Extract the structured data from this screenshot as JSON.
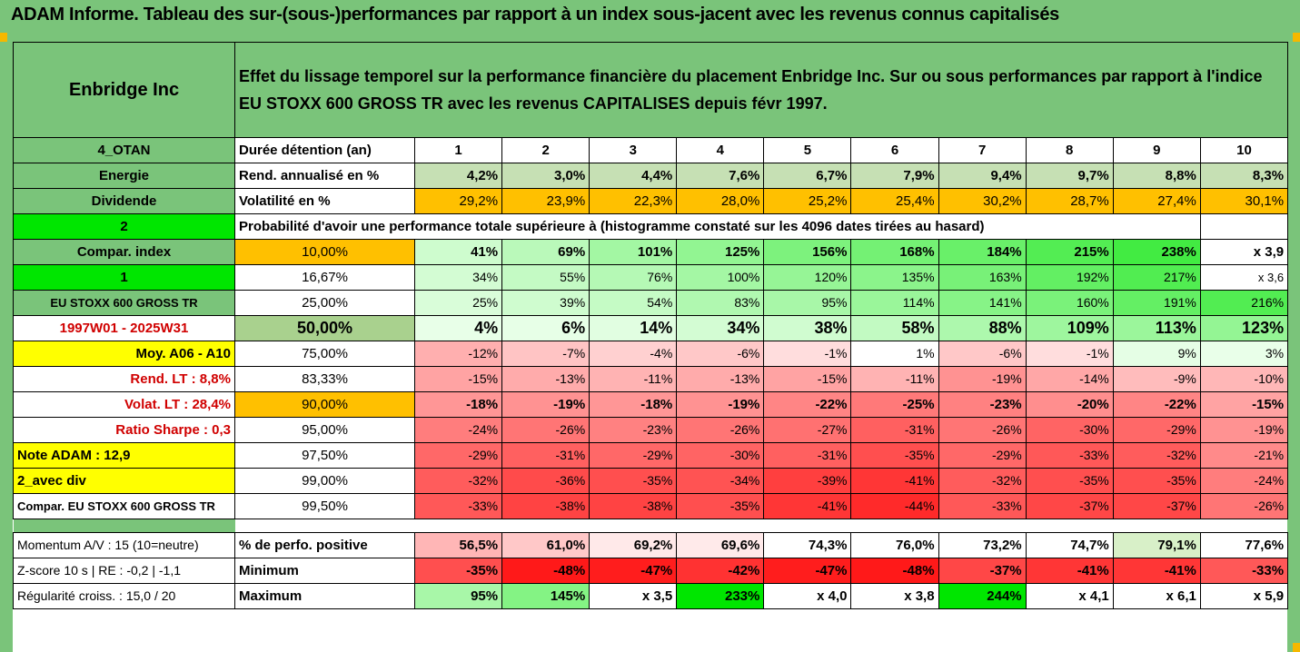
{
  "title": "ADAM Informe. Tableau des sur-(sous-)performances par rapport à un index sous-jacent avec les revenus connus capitalisés",
  "header": {
    "company": "Enbridge Inc",
    "description": "Effet du lissage temporel sur la performance financière du placement Enbridge Inc. Sur ou sous performances par rapport à l'indice EU STOXX 600 GROSS TR avec les revenus CAPITALISES depuis févr 1997."
  },
  "side": {
    "code": "4_OTAN",
    "sector": "Energie",
    "dividend": "Dividende",
    "val2": "2",
    "compar_index": "Compar. index",
    "val1": "1",
    "index_name": "EU STOXX 600 GROSS TR",
    "period": "1997W01 - 2025W31",
    "moy": "Moy. A06 - A10",
    "rend_lt": "Rend. LT :    8,8%",
    "volat_lt": "Volat. LT :   28,4%",
    "sharpe": "Ratio Sharpe :    0,3",
    "note": "Note ADAM : 12,9",
    "avec_div": "2_avec div",
    "compar_eu": "Compar. EU STOXX 600 GROSS TR"
  },
  "rows": {
    "duree_label": "Durée détention (an)",
    "years": [
      "1",
      "2",
      "3",
      "4",
      "5",
      "6",
      "7",
      "8",
      "9",
      "10"
    ],
    "rend_label": "Rend. annualisé en %",
    "rend": [
      "4,2%",
      "3,0%",
      "4,4%",
      "7,6%",
      "6,7%",
      "7,9%",
      "9,4%",
      "9,7%",
      "8,8%",
      "8,3%"
    ],
    "vol_label": "Volatilité en %",
    "vol": [
      "29,2%",
      "23,9%",
      "22,3%",
      "28,0%",
      "25,2%",
      "25,4%",
      "30,2%",
      "28,7%",
      "27,4%",
      "30,1%"
    ],
    "proba_label": "Probabilité d'avoir une performance totale supérieure à (histogramme constaté sur les 4096 dates tirées au hasard)"
  },
  "quantiles": [
    {
      "p": "10,00%",
      "v": [
        "41%",
        "69%",
        "101%",
        "125%",
        "156%",
        "168%",
        "184%",
        "215%",
        "238%",
        "x 3,9"
      ]
    },
    {
      "p": "16,67%",
      "v": [
        "34%",
        "55%",
        "76%",
        "100%",
        "120%",
        "135%",
        "163%",
        "192%",
        "217%",
        "x 3,6"
      ]
    },
    {
      "p": "25,00%",
      "v": [
        "25%",
        "39%",
        "54%",
        "83%",
        "95%",
        "114%",
        "141%",
        "160%",
        "191%",
        "216%"
      ]
    },
    {
      "p": "50,00%",
      "v": [
        "4%",
        "6%",
        "14%",
        "34%",
        "38%",
        "58%",
        "88%",
        "109%",
        "113%",
        "123%"
      ]
    },
    {
      "p": "75,00%",
      "v": [
        "-12%",
        "-7%",
        "-4%",
        "-6%",
        "-1%",
        "1%",
        "-6%",
        "-1%",
        "9%",
        "3%"
      ]
    },
    {
      "p": "83,33%",
      "v": [
        "-15%",
        "-13%",
        "-11%",
        "-13%",
        "-15%",
        "-11%",
        "-19%",
        "-14%",
        "-9%",
        "-10%"
      ]
    },
    {
      "p": "90,00%",
      "v": [
        "-18%",
        "-19%",
        "-18%",
        "-19%",
        "-22%",
        "-25%",
        "-23%",
        "-20%",
        "-22%",
        "-15%"
      ]
    },
    {
      "p": "95,00%",
      "v": [
        "-24%",
        "-26%",
        "-23%",
        "-26%",
        "-27%",
        "-31%",
        "-26%",
        "-30%",
        "-29%",
        "-19%"
      ]
    },
    {
      "p": "97,50%",
      "v": [
        "-29%",
        "-31%",
        "-29%",
        "-30%",
        "-31%",
        "-35%",
        "-29%",
        "-33%",
        "-32%",
        "-21%"
      ]
    },
    {
      "p": "99,00%",
      "v": [
        "-32%",
        "-36%",
        "-35%",
        "-34%",
        "-39%",
        "-41%",
        "-32%",
        "-35%",
        "-35%",
        "-24%"
      ]
    },
    {
      "p": "99,50%",
      "v": [
        "-33%",
        "-38%",
        "-38%",
        "-35%",
        "-41%",
        "-44%",
        "-33%",
        "-37%",
        "-37%",
        "-26%"
      ]
    }
  ],
  "footer": [
    {
      "left": "Momentum A/V : 15 (10=neutre)",
      "label": "% de perfo. positive",
      "v": [
        "56,5%",
        "61,0%",
        "69,2%",
        "69,6%",
        "74,3%",
        "76,0%",
        "73,2%",
        "74,7%",
        "79,1%",
        "77,6%"
      ]
    },
    {
      "left": "Z-score 10 s  |  RE : -0,2  |  -1,1",
      "label": "Minimum",
      "v": [
        "-35%",
        "-48%",
        "-47%",
        "-42%",
        "-47%",
        "-48%",
        "-37%",
        "-41%",
        "-41%",
        "-33%"
      ]
    },
    {
      "left": "Régularité croiss. : 15,0 / 20",
      "label": "Maximum",
      "v": [
        "95%",
        "145%",
        "x 3,5",
        "233%",
        "x 4,0",
        "x 3,8",
        "244%",
        "x 4,1",
        "x 6,1",
        "x 5,9"
      ]
    }
  ],
  "colors": {
    "header_green": "#7ac47a",
    "bright_green": "#00e600",
    "yellow": "#ffff00",
    "orange": "#ffc000",
    "red_text": "#d00000"
  }
}
